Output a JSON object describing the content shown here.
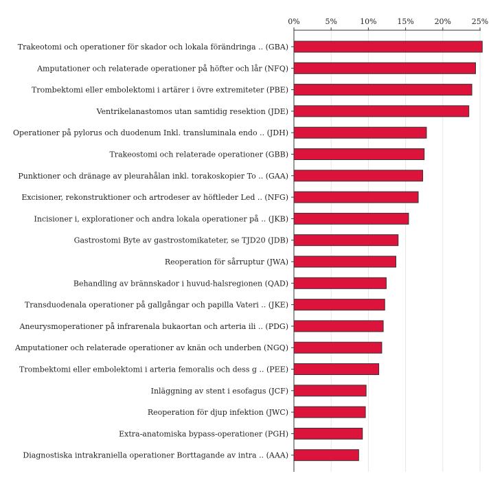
{
  "chart_data": {
    "type": "bar",
    "orientation": "horizontal",
    "xlim": [
      0,
      25
    ],
    "x_ticks": [
      0,
      5,
      10,
      15,
      20,
      25
    ],
    "x_tick_labels": [
      "0%",
      "5%",
      "10%",
      "15%",
      "20%",
      "25%"
    ],
    "x_axis_position": "top",
    "grid": true,
    "bar_color": "#dc143c",
    "categories": [
      "Trakeotomi och operationer för skador och lokala förändringa .. (GBA)",
      "Amputationer och relaterade operationer på höfter och lår (NFQ)",
      "Trombektomi eller embolektomi i artärer i övre extremiteter (PBE)",
      "Ventrikelanastomos utan samtidig resektion (JDE)",
      "Operationer på pylorus och duodenum Inkl. transluminala endo .. (JDH)",
      "Trakeostomi och relaterade operationer (GBB)",
      "Punktioner och dränage av pleurahålan inkl. torakoskopier To .. (GAA)",
      "Excisioner, rekonstruktioner och artrodeser av höftleder Led .. (NFG)",
      "Incisioner i, explorationer och andra lokala operationer på .. (JKB)",
      "Gastrostomi Byte av gastrostomikateter, se TJD20 (JDB)",
      "Reoperation för sårruptur (JWA)",
      "Behandling av brännskador i huvud-halsregionen (QAD)",
      "Transduodenala operationer på gallgångar och papilla Vateri .. (JKE)",
      "Aneurysmoperationer på infrarenala bukaortan och arteria ili .. (PDG)",
      "Amputationer och relaterade operationer av knän och underben (NGQ)",
      "Trombektomi eller embolektomi i arteria femoralis och dess g .. (PEE)",
      "Inläggning av stent i esofagus (JCF)",
      "Reoperation för djup infektion (JWC)",
      "Extra-anatomiska bypass-operationer (PGH)",
      "Diagnostiska intrakraniella operationer Borttagande av intra .. (AAA)"
    ],
    "values": [
      25.3,
      24.4,
      23.9,
      23.5,
      17.8,
      17.5,
      17.3,
      16.7,
      15.4,
      14.0,
      13.7,
      12.4,
      12.2,
      12.0,
      11.8,
      11.4,
      9.7,
      9.6,
      9.2,
      8.7
    ]
  }
}
